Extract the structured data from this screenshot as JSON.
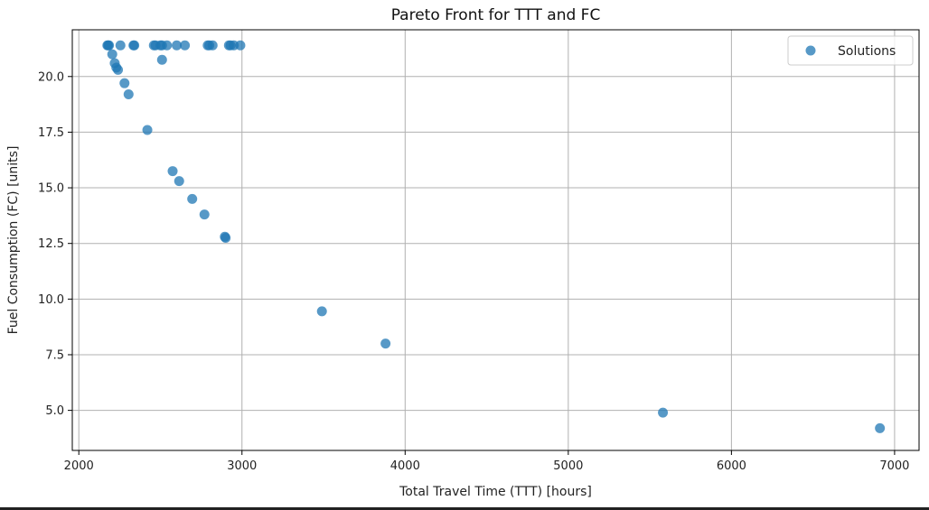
{
  "chart_data": {
    "type": "scatter",
    "title": "Pareto Front for TTT and FC",
    "xlabel": "Total Travel Time (TTT) [hours]",
    "ylabel": "Fuel Consumption (FC) [units]",
    "xlim": [
      1960,
      7150
    ],
    "ylim": [
      3.2,
      22.1
    ],
    "xticks": [
      2000,
      3000,
      4000,
      5000,
      6000,
      7000
    ],
    "xtick_labels": [
      "2000",
      "3000",
      "4000",
      "5000",
      "6000",
      "7000"
    ],
    "yticks": [
      5.0,
      7.5,
      10.0,
      12.5,
      15.0,
      17.5,
      20.0
    ],
    "ytick_labels": [
      "5.0",
      "7.5",
      "10.0",
      "12.5",
      "15.0",
      "17.5",
      "20.0"
    ],
    "grid": true,
    "legend_position": "top-right",
    "colors": {
      "marker": "#1f77b4"
    },
    "series": [
      {
        "name": "Solutions",
        "points": [
          [
            2175,
            21.4
          ],
          [
            2180,
            21.4
          ],
          [
            2185,
            21.4
          ],
          [
            2255,
            21.4
          ],
          [
            2335,
            21.4
          ],
          [
            2340,
            21.4
          ],
          [
            2460,
            21.4
          ],
          [
            2470,
            21.4
          ],
          [
            2500,
            21.4
          ],
          [
            2510,
            21.4
          ],
          [
            2540,
            21.4
          ],
          [
            2600,
            21.4
          ],
          [
            2650,
            21.4
          ],
          [
            2790,
            21.4
          ],
          [
            2800,
            21.4
          ],
          [
            2820,
            21.4
          ],
          [
            2920,
            21.4
          ],
          [
            2930,
            21.4
          ],
          [
            2950,
            21.4
          ],
          [
            2990,
            21.4
          ],
          [
            2205,
            21.0
          ],
          [
            2220,
            20.6
          ],
          [
            2230,
            20.4
          ],
          [
            2240,
            20.3
          ],
          [
            2510,
            20.75
          ],
          [
            2280,
            19.7
          ],
          [
            2305,
            19.2
          ],
          [
            2420,
            17.6
          ],
          [
            2575,
            15.75
          ],
          [
            2615,
            15.3
          ],
          [
            2695,
            14.5
          ],
          [
            2770,
            13.8
          ],
          [
            2895,
            12.8
          ],
          [
            2900,
            12.75
          ],
          [
            3490,
            9.45
          ],
          [
            3880,
            8.0
          ],
          [
            5580,
            4.9
          ],
          [
            6910,
            4.2
          ]
        ]
      }
    ]
  }
}
